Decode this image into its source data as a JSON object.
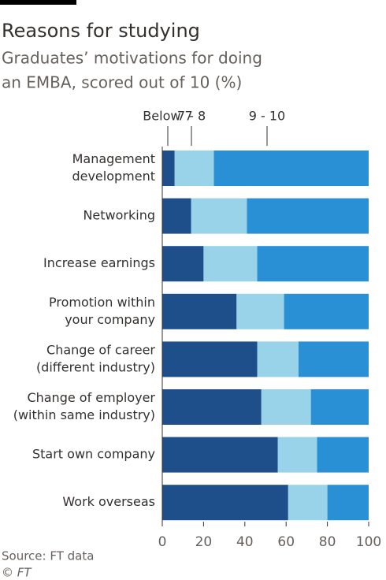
{
  "chart_data": {
    "type": "stacked-bar-horizontal",
    "title": "Reasons for studying",
    "subtitle": [
      "Graduates’ motivations for doing",
      "an EMBA, scored out of 10 (%)"
    ],
    "categories": [
      [
        "Management",
        "development"
      ],
      [
        "Networking"
      ],
      [
        "Increase earnings"
      ],
      [
        "Promotion within",
        "your company"
      ],
      [
        "Change of career",
        "(different industry)"
      ],
      [
        "Change of employer",
        "(within same industry)"
      ],
      [
        "Start own company"
      ],
      [
        "Work overseas"
      ]
    ],
    "series": [
      {
        "name": "Below 7",
        "color": "#1e4f8b",
        "values": [
          6,
          14,
          20,
          36,
          46,
          48,
          56,
          61
        ]
      },
      {
        "name": "7 - 8",
        "color": "#98d3e9",
        "values": [
          19,
          27,
          26,
          23,
          20,
          24,
          19,
          19
        ]
      },
      {
        "name": "9 - 10",
        "color": "#2a90d6",
        "values": [
          75,
          59,
          54,
          41,
          34,
          28,
          25,
          20
        ]
      }
    ],
    "xlim": [
      0,
      100
    ],
    "xticks": [
      0,
      20,
      40,
      60,
      80,
      100
    ],
    "source": "Source: FT data",
    "credit": "© FT"
  }
}
